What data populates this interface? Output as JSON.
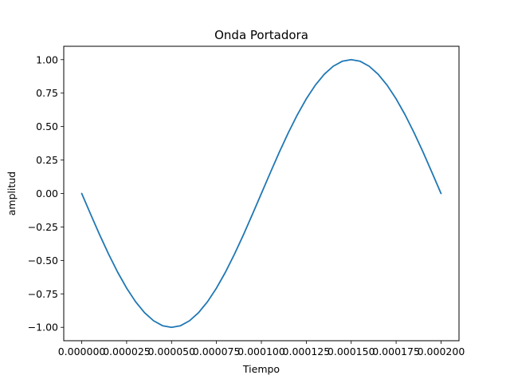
{
  "chart_data": {
    "type": "line",
    "title": "Onda Portadora",
    "xlabel": "Tiempo",
    "ylabel": "amplitud",
    "xlim": [
      -1e-05,
      0.00021
    ],
    "ylim": [
      -1.1,
      1.1
    ],
    "grid": false,
    "legend": "none",
    "x_ticks": [
      0.0,
      2.5e-05,
      5e-05,
      7.5e-05,
      0.0001,
      0.000125,
      0.00015,
      0.000175,
      0.0002
    ],
    "x_tick_labels": [
      "0.000000",
      "0.000025",
      "0.000050",
      "0.000075",
      "0.000100",
      "0.000125",
      "0.000150",
      "0.000175",
      "0.000200"
    ],
    "y_ticks": [
      -1.0,
      -0.75,
      -0.5,
      -0.25,
      0.0,
      0.25,
      0.5,
      0.75,
      1.0
    ],
    "y_tick_labels": [
      "−1.00",
      "−0.75",
      "−0.50",
      "−0.25",
      "0.00",
      "0.25",
      "0.50",
      "0.75",
      "1.00"
    ],
    "series": [
      {
        "color": "#1f77b4",
        "x": [
          0.0,
          5e-06,
          1e-05,
          1.5e-05,
          2e-05,
          2.5e-05,
          3e-05,
          3.5e-05,
          4e-05,
          4.5e-05,
          5e-05,
          5.5e-05,
          6e-05,
          6.5e-05,
          7e-05,
          7.5e-05,
          8e-05,
          8.5e-05,
          9e-05,
          9.5e-05,
          0.0001,
          0.000105,
          0.00011,
          0.000115,
          0.00012,
          0.000125,
          0.00013,
          0.000135,
          0.00014,
          0.000145,
          0.00015,
          0.000155,
          0.00016,
          0.000165,
          0.00017,
          0.000175,
          0.00018,
          0.000185,
          0.00019,
          0.000195,
          0.0002
        ],
        "y": [
          0.0,
          -0.156,
          -0.309,
          -0.454,
          -0.588,
          -0.707,
          -0.809,
          -0.891,
          -0.951,
          -0.988,
          -1.0,
          -0.988,
          -0.951,
          -0.891,
          -0.809,
          -0.707,
          -0.588,
          -0.454,
          -0.309,
          -0.156,
          0.0,
          0.156,
          0.309,
          0.454,
          0.588,
          0.707,
          0.809,
          0.891,
          0.951,
          0.988,
          1.0,
          0.988,
          0.951,
          0.891,
          0.809,
          0.707,
          0.588,
          0.454,
          0.309,
          0.156,
          0.0
        ]
      }
    ]
  }
}
